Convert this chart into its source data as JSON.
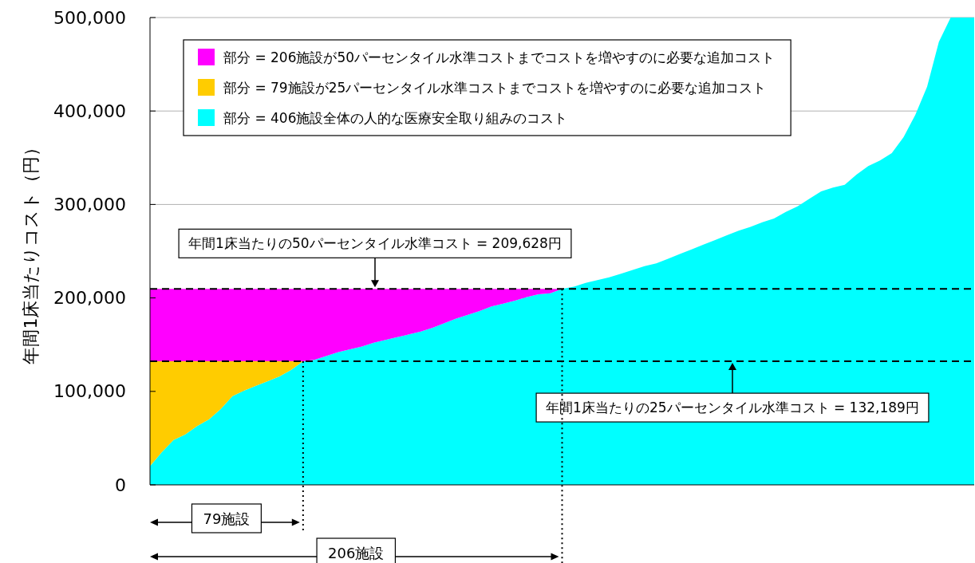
{
  "chart_data": {
    "type": "area",
    "stacked": true,
    "ylabel": "年間1床当たりコスト（円）",
    "categories": [
      null,
      null,
      null,
      null,
      null,
      null,
      null,
      null,
      null,
      null,
      null,
      null,
      null,
      null,
      null,
      null,
      null,
      null,
      null,
      null,
      null,
      null,
      null,
      null,
      null,
      null,
      null,
      null,
      null,
      null,
      null,
      null,
      null,
      null,
      null,
      null,
      null,
      null,
      null,
      null,
      null,
      null,
      null,
      null,
      null,
      null,
      null,
      null,
      null,
      null,
      null,
      null,
      null,
      null,
      null,
      null,
      null,
      null,
      null,
      null,
      null,
      null,
      null,
      null,
      null,
      null,
      null,
      null,
      null,
      null,
      null
    ],
    "series": [
      {
        "name": "部分 = 406施設全体の人的な医療安全取り組みのコスト",
        "color": "#00ffff",
        "values": [
          20000,
          35000,
          48000,
          54000,
          63000,
          70000,
          81000,
          95000,
          101000,
          106000,
          111000,
          116000,
          123000,
          132189,
          134000,
          138000,
          142000,
          145000,
          148000,
          152000,
          155000,
          158000,
          161000,
          164000,
          168000,
          173000,
          178000,
          182000,
          186000,
          191000,
          194000,
          197000,
          201000,
          204000,
          205000,
          209628,
          212000,
          216000,
          219000,
          222000,
          226000,
          230000,
          234000,
          237000,
          242000,
          247000,
          252000,
          257000,
          262000,
          267000,
          272000,
          276000,
          281000,
          285000,
          292000,
          298000,
          306000,
          314000,
          318000,
          321000,
          332000,
          341000,
          347000,
          355000,
          372000,
          396000,
          426000,
          474000,
          500000,
          500000,
          500000
        ]
      },
      {
        "name": "部分 = 79施設が25パーセンタイル水準コストまでコストを増やすのに必要な追加コスト",
        "color": "#ffcc00",
        "values": [
          112189,
          97189,
          84189,
          78189,
          69189,
          62189,
          51189,
          37189,
          31189,
          26189,
          21189,
          16189,
          9189,
          0,
          null,
          null,
          null,
          null,
          null,
          null,
          null,
          null,
          null,
          null,
          null,
          null,
          null,
          null,
          null,
          null,
          null,
          null,
          null,
          null,
          null,
          null,
          null,
          null,
          null,
          null,
          null,
          null,
          null,
          null,
          null,
          null,
          null,
          null,
          null,
          null,
          null,
          null,
          null,
          null,
          null,
          null,
          null,
          null,
          null,
          null,
          null,
          null,
          null,
          null,
          null,
          null,
          null,
          null,
          null,
          null,
          null
        ]
      },
      {
        "name": "部分 = 206施設が50パーセンタイル水準コストまでコストを増やすのに必要な追加コスト",
        "color": "#ff00ff",
        "values": [
          77439,
          77439,
          77439,
          77439,
          77439,
          77439,
          77439,
          77439,
          77439,
          77439,
          77439,
          77439,
          77439,
          77439,
          75628,
          71628,
          67628,
          64628,
          61628,
          57628,
          54628,
          51628,
          48628,
          45628,
          41628,
          36628,
          31628,
          27628,
          23628,
          18628,
          15628,
          12628,
          8628,
          5628,
          4628,
          0,
          null,
          null,
          null,
          null,
          null,
          null,
          null,
          null,
          null,
          null,
          null,
          null,
          null,
          null,
          null,
          null,
          null,
          null,
          null,
          null,
          null,
          null,
          null,
          null,
          null,
          null,
          null,
          null,
          null,
          null,
          null,
          null,
          null,
          null,
          null
        ]
      }
    ],
    "ylim": [
      0,
      500000
    ],
    "yticks": [
      0,
      {
        "value": 100000,
        "label": "100,000"
      },
      {
        "value": 200000,
        "label": "200,000"
      },
      {
        "value": 300000,
        "label": "300,000"
      },
      {
        "value": 400000,
        "label": "400,000"
      },
      {
        "value": 500000,
        "label": "500,000"
      }
    ],
    "tick_labels": "y",
    "grid": "y",
    "legend": "top left",
    "annotations": [
      "79施設",
      "206施設"
    ],
    "ref_lines": [
      {
        "axis": "y",
        "value": 209628,
        "label": "年間1床当たりの50パーセンタイル水準コスト = 209,628円",
        "line_style": "dashed",
        "color": "#000000"
      },
      {
        "axis": "y",
        "value": 132189,
        "label": "年間1床当たりの25パーセンタイル水準コスト = 132,189円",
        "line_style": "dashed",
        "color": "#000000"
      }
    ]
  }
}
